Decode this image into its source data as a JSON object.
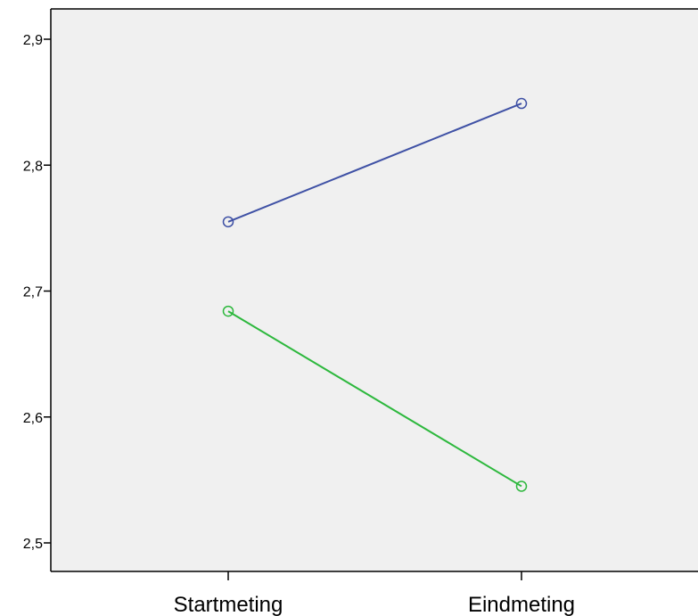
{
  "chart_data": {
    "type": "line",
    "categories": [
      "Startmeting",
      "Eindmeting"
    ],
    "series": [
      {
        "values": [
          2.755,
          2.849
        ],
        "color": "#3F51A5"
      },
      {
        "values": [
          2.684,
          2.545
        ],
        "color": "#2DB83D"
      }
    ],
    "ylim": [
      2.475,
      2.925
    ],
    "yticks": [
      2.5,
      2.6,
      2.7,
      2.8,
      2.9
    ],
    "ytick_labels": [
      "2,5",
      "2,6",
      "2,7",
      "2,8",
      "2,9"
    ],
    "marker": "open-circle",
    "grid": false,
    "plot_background": "#F0F0F0"
  }
}
